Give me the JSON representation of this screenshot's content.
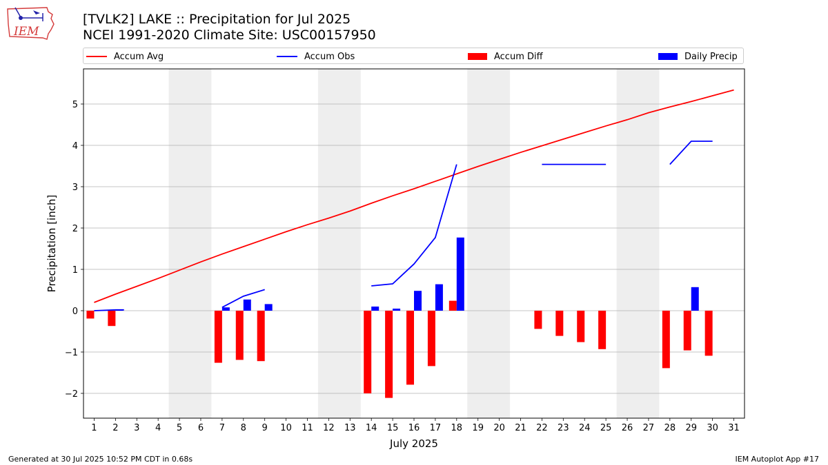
{
  "title_line1": "[TVLK2] LAKE :: Precipitation for Jul 2025",
  "title_line2": "NCEI 1991-2020 Climate Site: USC00157950",
  "logo_text": "IEM",
  "footer_left": "Generated at 30 Jul 2025 10:52 PM CDT in 0.68s",
  "footer_right": "IEM Autoplot App #17",
  "colors": {
    "avg": "#ff0000",
    "obs": "#0000ff",
    "diff": "#ff0000",
    "daily": "#0000ff",
    "weekend": "#eeeeee",
    "grid": "#b0b0b0"
  },
  "legend": [
    {
      "label": "Accum Avg",
      "kind": "line",
      "color": "#ff0000"
    },
    {
      "label": "Accum Obs",
      "kind": "line",
      "color": "#0000ff"
    },
    {
      "label": "Accum Diff",
      "kind": "patch",
      "color": "#ff0000"
    },
    {
      "label": "Daily Precip",
      "kind": "patch",
      "color": "#0000ff"
    }
  ],
  "chart_data": {
    "type": "bar",
    "xlabel": "July 2025",
    "ylabel": "Precipitation [inch]",
    "xlim": [
      0.5,
      31.5
    ],
    "ylim": [
      -2.6,
      5.85
    ],
    "x_ticks": [
      1,
      2,
      3,
      4,
      5,
      6,
      7,
      8,
      9,
      10,
      11,
      12,
      13,
      14,
      15,
      16,
      17,
      18,
      19,
      20,
      21,
      22,
      23,
      24,
      25,
      26,
      27,
      28,
      29,
      30,
      31
    ],
    "y_ticks": [
      -2,
      -1,
      0,
      1,
      2,
      3,
      4,
      5
    ],
    "y_tick_labels": [
      "−2",
      "−1",
      "0",
      "1",
      "2",
      "3",
      "4",
      "5"
    ],
    "grid": "horizontal",
    "legend_position": "top",
    "weekends": [
      [
        5,
        6
      ],
      [
        12,
        13
      ],
      [
        19,
        20
      ],
      [
        26,
        27
      ]
    ],
    "series": [
      {
        "name": "Accum Avg",
        "kind": "line",
        "x": [
          1,
          2,
          3,
          4,
          5,
          6,
          7,
          8,
          9,
          10,
          11,
          12,
          13,
          14,
          15,
          16,
          17,
          18,
          19,
          20,
          21,
          22,
          23,
          24,
          25,
          26,
          27,
          28,
          29,
          30,
          31
        ],
        "values": [
          0.2,
          0.4,
          0.59,
          0.78,
          0.98,
          1.18,
          1.37,
          1.55,
          1.73,
          1.91,
          2.08,
          2.24,
          2.41,
          2.6,
          2.78,
          2.95,
          3.13,
          3.31,
          3.49,
          3.66,
          3.83,
          3.99,
          4.15,
          4.31,
          4.47,
          4.62,
          4.79,
          4.93,
          5.06,
          5.2,
          5.34
        ]
      },
      {
        "name": "Accum Obs",
        "kind": "line",
        "segments": [
          {
            "x": [
              1,
              2,
              2.4
            ],
            "values": [
              0.0,
              0.02,
              0.02
            ]
          },
          {
            "x": [
              7,
              8,
              9
            ],
            "values": [
              0.08,
              0.35,
              0.51
            ]
          },
          {
            "x": [
              14,
              15,
              16,
              17,
              18
            ],
            "values": [
              0.6,
              0.65,
              1.13,
              1.77,
              3.54
            ]
          },
          {
            "x": [
              22,
              23,
              24,
              25
            ],
            "values": [
              3.54,
              3.54,
              3.54,
              3.54
            ]
          },
          {
            "x": [
              28,
              29,
              30
            ],
            "values": [
              3.54,
              4.1,
              4.1
            ]
          }
        ]
      },
      {
        "name": "Accum Diff",
        "kind": "bar",
        "x": [
          1,
          2,
          7,
          8,
          9,
          14,
          15,
          16,
          17,
          18,
          22,
          23,
          24,
          25,
          28,
          29,
          30
        ],
        "values": [
          -0.19,
          -0.37,
          -1.26,
          -1.19,
          -1.22,
          -2.0,
          -2.11,
          -1.79,
          -1.34,
          0.24,
          -0.44,
          -0.61,
          -0.76,
          -0.93,
          -1.39,
          -0.96,
          -1.09
        ]
      },
      {
        "name": "Daily Precip",
        "kind": "bar",
        "x": [
          1,
          2,
          7,
          8,
          9,
          14,
          15,
          16,
          17,
          18,
          29
        ],
        "values": [
          0.01,
          0.02,
          0.08,
          0.27,
          0.16,
          0.1,
          0.05,
          0.48,
          0.64,
          1.77,
          0.57
        ]
      }
    ]
  }
}
